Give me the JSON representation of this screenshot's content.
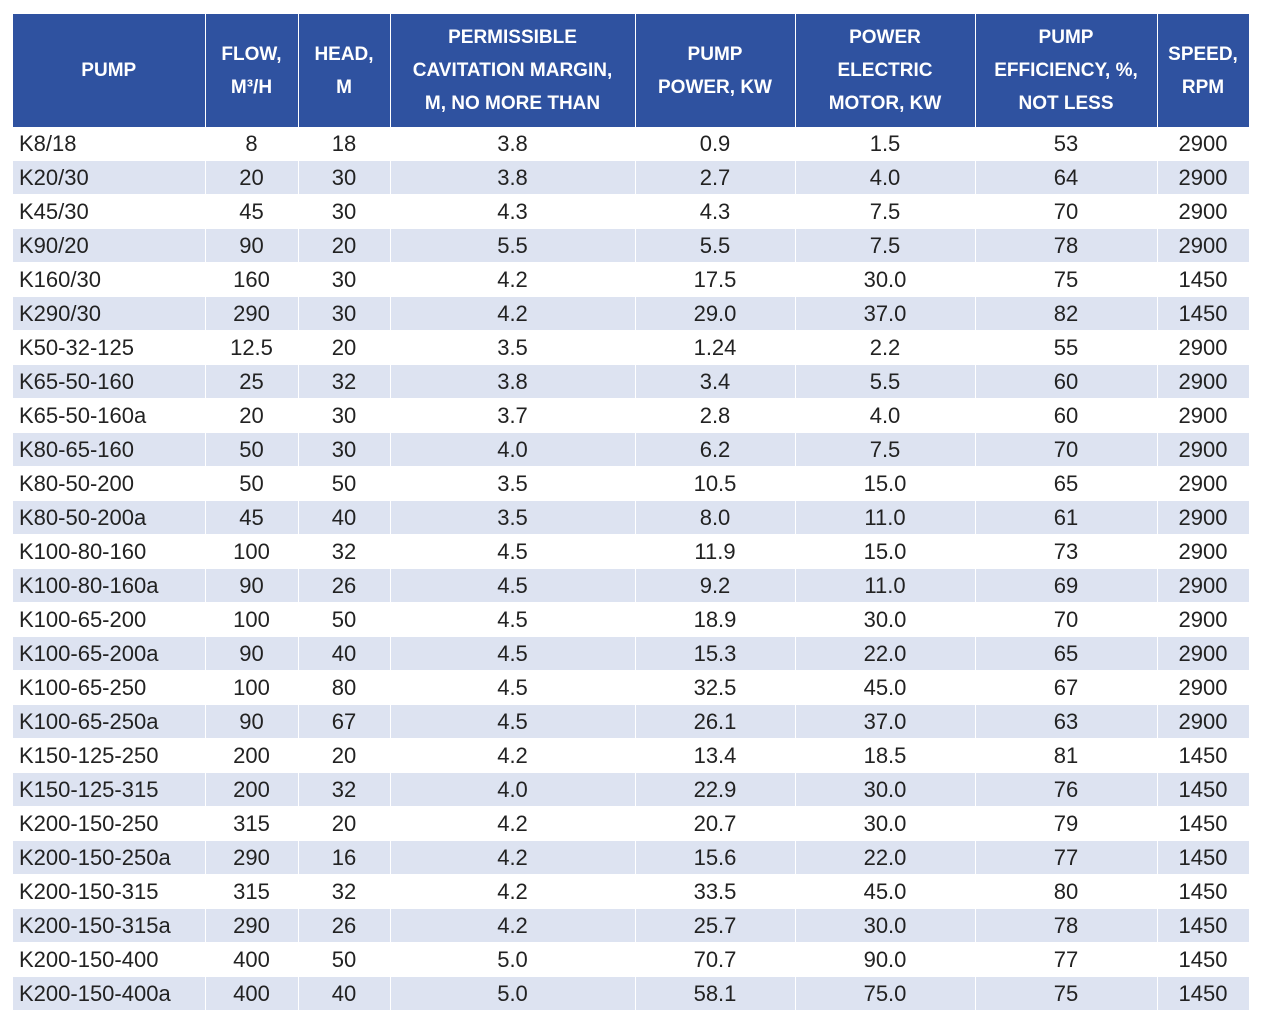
{
  "table": {
    "header": [
      [
        "PUMP"
      ],
      [
        "FLOW,",
        "M³/H"
      ],
      [
        "HEAD,",
        "M"
      ],
      [
        "PERMISSIBLE",
        "CAVITATION MARGIN,",
        "M, NO MORE THAN"
      ],
      [
        "PUMP",
        "POWER, KW"
      ],
      [
        "POWER",
        "ELECTRIC",
        "MOTOR, KW"
      ],
      [
        "PUMP",
        "EFFICIENCY, %,",
        "NOT LESS"
      ],
      [
        "SPEED,",
        "RPM"
      ]
    ],
    "rows": [
      [
        "K8/18",
        "8",
        "18",
        "3.8",
        "0.9",
        "1.5",
        "53",
        "2900"
      ],
      [
        "K20/30",
        "20",
        "30",
        "3.8",
        "2.7",
        "4.0",
        "64",
        "2900"
      ],
      [
        "K45/30",
        "45",
        "30",
        "4.3",
        "4.3",
        "7.5",
        "70",
        "2900"
      ],
      [
        "K90/20",
        "90",
        "20",
        "5.5",
        "5.5",
        "7.5",
        "78",
        "2900"
      ],
      [
        "K160/30",
        "160",
        "30",
        "4.2",
        "17.5",
        "30.0",
        "75",
        "1450"
      ],
      [
        "K290/30",
        "290",
        "30",
        "4.2",
        "29.0",
        "37.0",
        "82",
        "1450"
      ],
      [
        "K50-32-125",
        "12.5",
        "20",
        "3.5",
        "1.24",
        "2.2",
        "55",
        "2900"
      ],
      [
        "K65-50-160",
        "25",
        "32",
        "3.8",
        "3.4",
        "5.5",
        "60",
        "2900"
      ],
      [
        "K65-50-160a",
        "20",
        "30",
        "3.7",
        "2.8",
        "4.0",
        "60",
        "2900"
      ],
      [
        "K80-65-160",
        "50",
        "30",
        "4.0",
        "6.2",
        "7.5",
        "70",
        "2900"
      ],
      [
        "K80-50-200",
        "50",
        "50",
        "3.5",
        "10.5",
        "15.0",
        "65",
        "2900"
      ],
      [
        "K80-50-200a",
        "45",
        "40",
        "3.5",
        "8.0",
        "11.0",
        "61",
        "2900"
      ],
      [
        "K100-80-160",
        "100",
        "32",
        "4.5",
        "11.9",
        "15.0",
        "73",
        "2900"
      ],
      [
        "K100-80-160a",
        "90",
        "26",
        "4.5",
        "9.2",
        "11.0",
        "69",
        "2900"
      ],
      [
        "K100-65-200",
        "100",
        "50",
        "4.5",
        "18.9",
        "30.0",
        "70",
        "2900"
      ],
      [
        "K100-65-200a",
        "90",
        "40",
        "4.5",
        "15.3",
        "22.0",
        "65",
        "2900"
      ],
      [
        "K100-65-250",
        "100",
        "80",
        "4.5",
        "32.5",
        "45.0",
        "67",
        "2900"
      ],
      [
        "K100-65-250a",
        "90",
        "67",
        "4.5",
        "26.1",
        "37.0",
        "63",
        "2900"
      ],
      [
        "K150-125-250",
        "200",
        "20",
        "4.2",
        "13.4",
        "18.5",
        "81",
        "1450"
      ],
      [
        "K150-125-315",
        "200",
        "32",
        "4.0",
        "22.9",
        "30.0",
        "76",
        "1450"
      ],
      [
        "K200-150-250",
        "315",
        "20",
        "4.2",
        "20.7",
        "30.0",
        "79",
        "1450"
      ],
      [
        "K200-150-250a",
        "290",
        "16",
        "4.2",
        "15.6",
        "22.0",
        "77",
        "1450"
      ],
      [
        "K200-150-315",
        "315",
        "32",
        "4.2",
        "33.5",
        "45.0",
        "80",
        "1450"
      ],
      [
        "K200-150-315a",
        "290",
        "26",
        "4.2",
        "25.7",
        "30.0",
        "78",
        "1450"
      ],
      [
        "K200-150-400",
        "400",
        "50",
        "5.0",
        "70.7",
        "90.0",
        "77",
        "1450"
      ],
      [
        "K200-150-400a",
        "400",
        "40",
        "5.0",
        "58.1",
        "75.0",
        "75",
        "1450"
      ]
    ]
  }
}
